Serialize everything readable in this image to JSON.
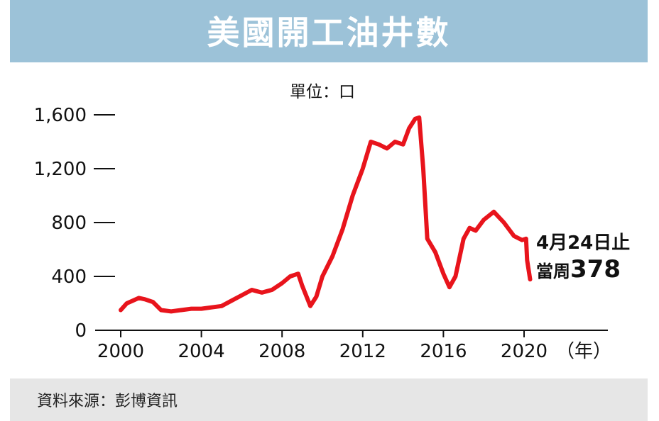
{
  "header": {
    "title": "美國開工油井數"
  },
  "unit_label": "單位：口",
  "annotation": {
    "line1": "4月24日止",
    "line2_prefix": "當周",
    "line2_value": "378"
  },
  "source": "資料來源：彭博資訊",
  "colors": {
    "banner": "#9cc2d8",
    "line": "#e8141c",
    "source_bar": "#e6e6e6"
  },
  "chart_data": {
    "type": "line",
    "title": "美國開工油井數",
    "xlabel": "（年）",
    "ylabel": "單位：口",
    "xlim": [
      2000,
      2020.3
    ],
    "ylim": [
      0,
      1600
    ],
    "x_ticks": [
      2000,
      2004,
      2008,
      2012,
      2016,
      2020
    ],
    "x_tick_labels": [
      "2000",
      "2004",
      "2008",
      "2012",
      "2016",
      "2020"
    ],
    "y_ticks": [
      0,
      400,
      800,
      1200,
      1600
    ],
    "y_tick_labels": [
      "0",
      "400",
      "800",
      "1,200",
      "1,600"
    ],
    "series": [
      {
        "x": [
          2000.0,
          2000.3,
          2000.6,
          2000.9,
          2001.2,
          2001.6,
          2002.0,
          2002.5,
          2003.0,
          2003.5,
          2004.0,
          2004.5,
          2005.0,
          2005.5,
          2006.0,
          2006.5,
          2007.0,
          2007.5,
          2008.0,
          2008.4,
          2008.8,
          2009.0,
          2009.4,
          2009.7,
          2010.0,
          2010.5,
          2011.0,
          2011.5,
          2012.0,
          2012.4,
          2012.8,
          2013.2,
          2013.6,
          2014.0,
          2014.3,
          2014.6,
          2014.8,
          2015.0,
          2015.2,
          2015.6,
          2016.0,
          2016.3,
          2016.6,
          2017.0,
          2017.3,
          2017.6,
          2018.0,
          2018.5,
          2019.0,
          2019.5,
          2019.9,
          2020.1,
          2020.15,
          2020.3
        ],
        "y": [
          150,
          200,
          220,
          240,
          230,
          210,
          150,
          140,
          150,
          160,
          160,
          170,
          180,
          220,
          260,
          300,
          280,
          300,
          350,
          400,
          420,
          330,
          180,
          250,
          400,
          550,
          750,
          1000,
          1200,
          1400,
          1380,
          1350,
          1400,
          1380,
          1500,
          1570,
          1580,
          1200,
          680,
          580,
          420,
          320,
          400,
          680,
          760,
          740,
          820,
          880,
          800,
          700,
          670,
          680,
          520,
          378
        ]
      }
    ]
  }
}
